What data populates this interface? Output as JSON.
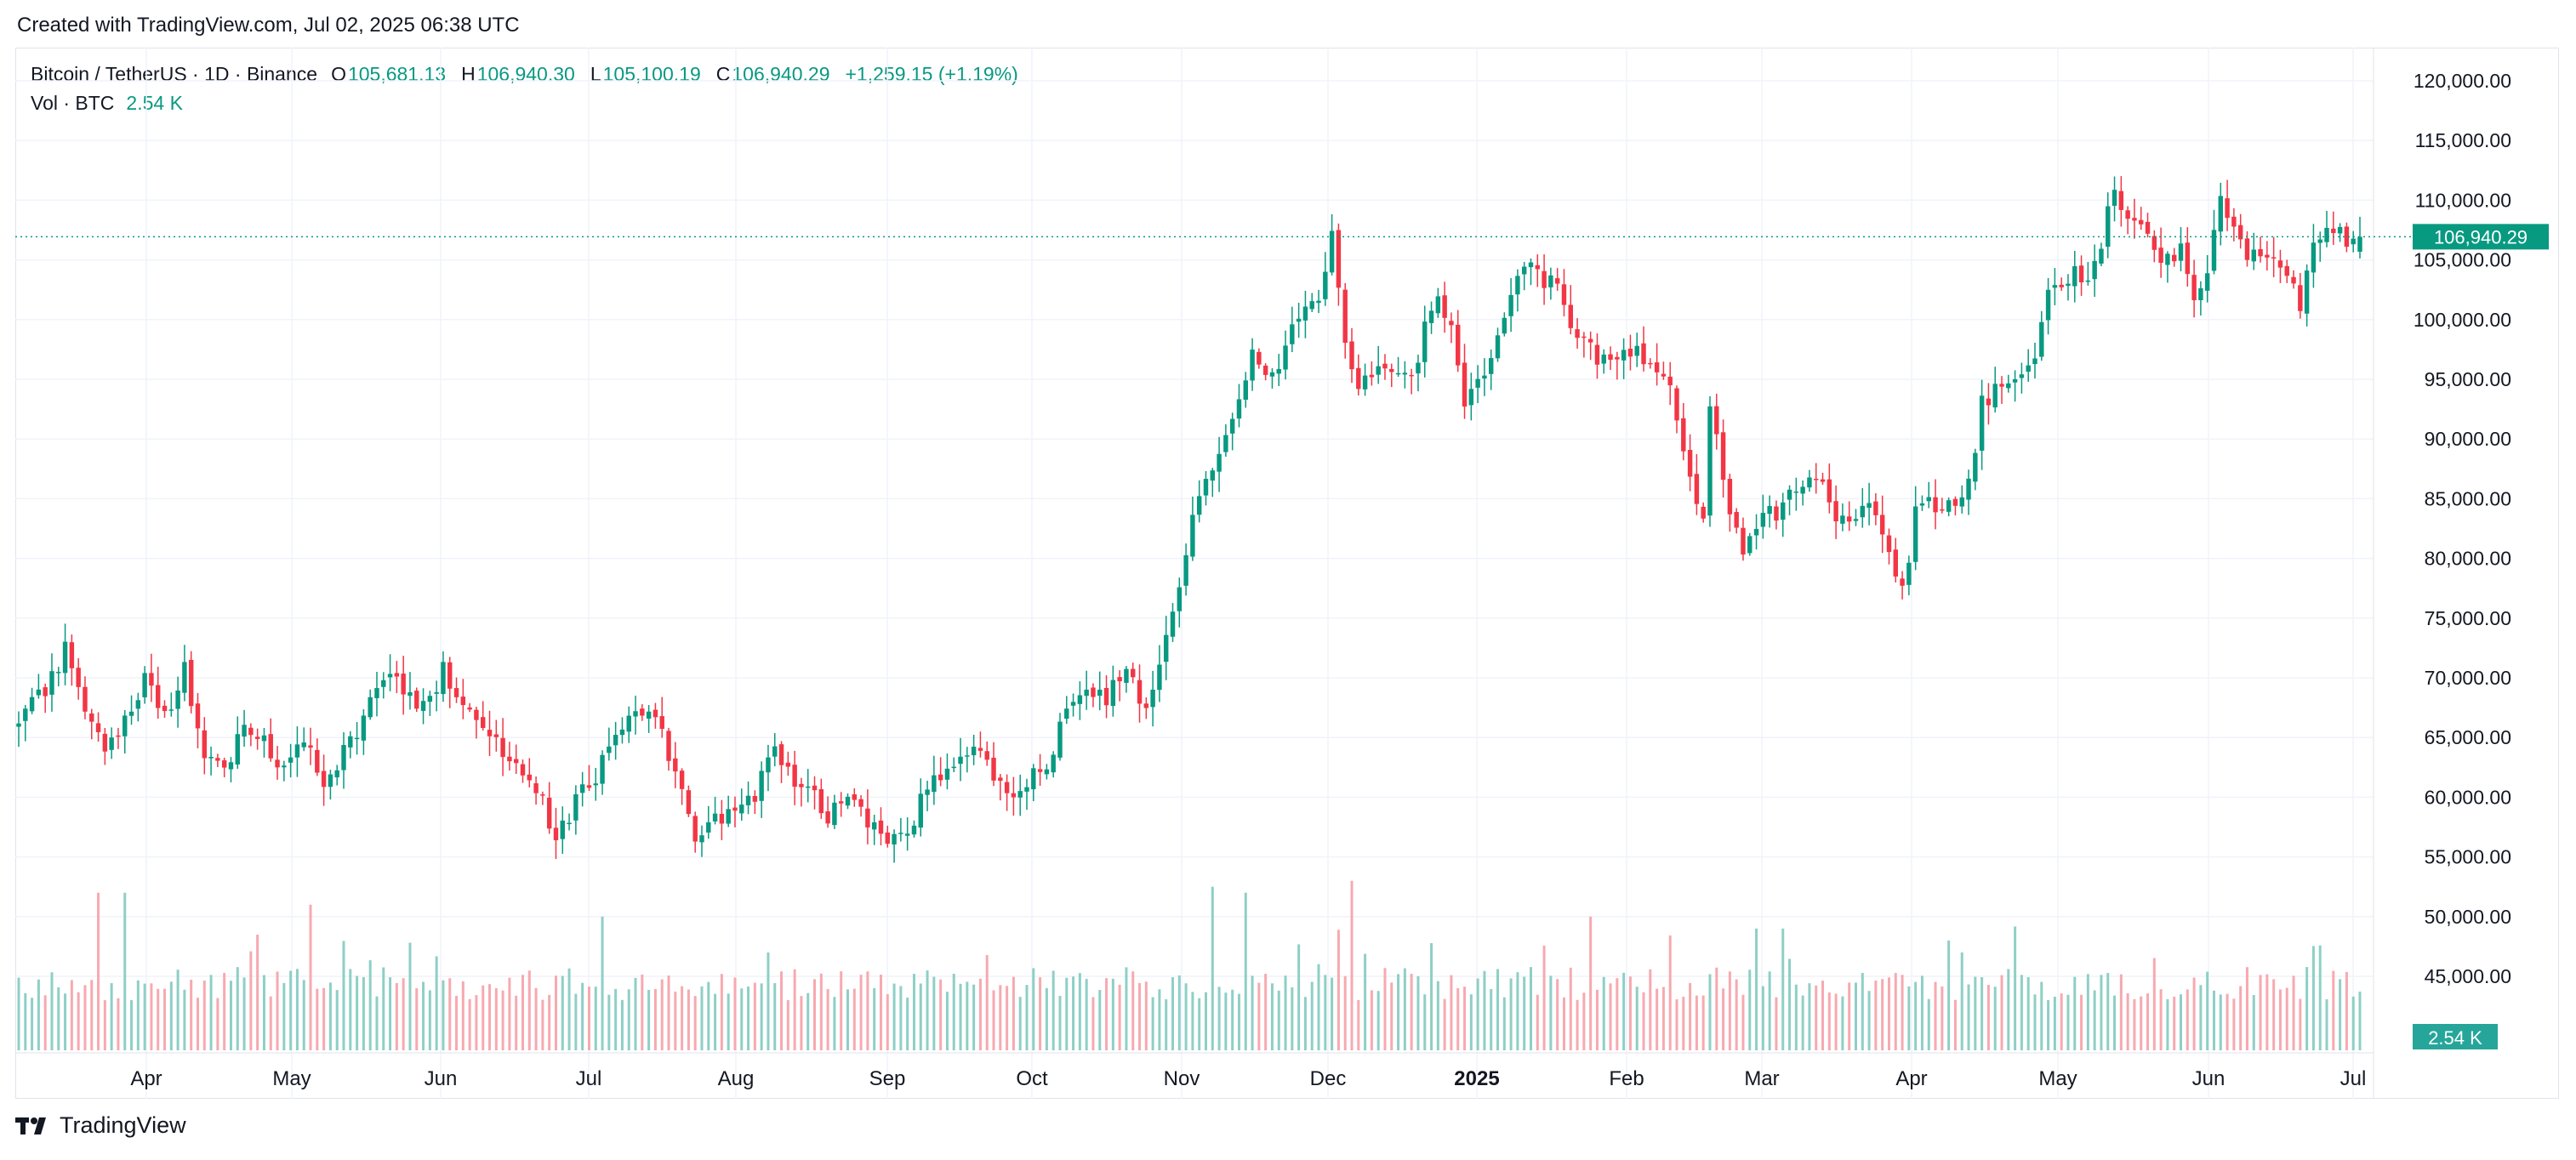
{
  "header": {
    "created_with": "Created with TradingView.com, Jul 02, 2025 06:38 UTC"
  },
  "legend": {
    "symbol": "Bitcoin / TetherUS · 1D · Binance",
    "open_label": "O",
    "open": "105,681.13",
    "high_label": "H",
    "high": "106,940.30",
    "low_label": "L",
    "low": "105,100.19",
    "close_label": "C",
    "close": "106,940.29",
    "change": "+1,259.15 (+1.19%)",
    "vol_label": "Vol · BTC",
    "vol": "2.54 K"
  },
  "price_badge": "106,940.29",
  "volume_badge": "2.54 K",
  "footer": {
    "brand": "TradingView",
    "logo_icon": "tradingview-logo-icon"
  },
  "colors": {
    "up": "#089981",
    "down": "#f23645",
    "up_vol": "#8ecfc6",
    "down_vol": "#f7a9b0",
    "grid": "#f0f3fa",
    "text": "#131722"
  },
  "chart_data": {
    "type": "candlestick",
    "ylim": [
      42000,
      123000
    ],
    "y_ticks": [
      "120,000.00",
      "115,000.00",
      "110,000.00",
      "105,000.00",
      "100,000.00",
      "95,000.00",
      "90,000.00",
      "85,000.00",
      "80,000.00",
      "75,000.00",
      "70,000.00",
      "65,000.00",
      "60,000.00",
      "55,000.00",
      "50,000.00",
      "45,000.00"
    ],
    "x_ticks": [
      "Apr",
      "May",
      "Jun",
      "Jul",
      "Aug",
      "Sep",
      "Oct",
      "Nov",
      "Dec",
      "2025",
      "Feb",
      "Mar",
      "Apr",
      "May",
      "Jun",
      "Jul"
    ],
    "last_close": 106940.29,
    "price_path": [
      [
        0,
        66000
      ],
      [
        4,
        69000
      ],
      [
        7,
        72500
      ],
      [
        10,
        67000
      ],
      [
        13,
        63500
      ],
      [
        16,
        66500
      ],
      [
        19,
        70000
      ],
      [
        22,
        66500
      ],
      [
        25,
        71000
      ],
      [
        28,
        63000
      ],
      [
        31,
        62000
      ],
      [
        34,
        66500
      ],
      [
        37,
        65000
      ],
      [
        40,
        62000
      ],
      [
        43,
        64500
      ],
      [
        46,
        61000
      ],
      [
        49,
        63500
      ],
      [
        52,
        67000
      ],
      [
        55,
        70500
      ],
      [
        58,
        69000
      ],
      [
        61,
        67500
      ],
      [
        64,
        70500
      ],
      [
        67,
        68500
      ],
      [
        70,
        66500
      ],
      [
        73,
        64000
      ],
      [
        76,
        62000
      ],
      [
        78,
        60500
      ],
      [
        81,
        57000
      ],
      [
        84,
        59500
      ],
      [
        87,
        62000
      ],
      [
        90,
        66000
      ],
      [
        93,
        67500
      ],
      [
        96,
        66500
      ],
      [
        99,
        62500
      ],
      [
        102,
        56500
      ],
      [
        105,
        58000
      ],
      [
        108,
        59500
      ],
      [
        111,
        60500
      ],
      [
        114,
        64500
      ],
      [
        117,
        61000
      ],
      [
        120,
        60000
      ],
      [
        122,
        58500
      ],
      [
        125,
        59500
      ],
      [
        128,
        58000
      ],
      [
        131,
        55500
      ],
      [
        134,
        57500
      ],
      [
        137,
        60500
      ],
      [
        140,
        62000
      ],
      [
        143,
        64000
      ],
      [
        146,
        62500
      ],
      [
        149,
        60500
      ],
      [
        152,
        61500
      ],
      [
        155,
        63000
      ],
      [
        158,
        67000
      ],
      [
        161,
        68500
      ],
      [
        164,
        68000
      ],
      [
        166,
        70500
      ],
      [
        168,
        69500
      ],
      [
        170,
        67500
      ],
      [
        172,
        72000
      ],
      [
        174,
        75500
      ],
      [
        176,
        79500
      ],
      [
        178,
        86000
      ],
      [
        180,
        87500
      ],
      [
        182,
        90000
      ],
      [
        184,
        93000
      ],
      [
        186,
        97500
      ],
      [
        188,
        96000
      ],
      [
        190,
        96000
      ],
      [
        192,
        100500
      ],
      [
        194,
        101000
      ],
      [
        196,
        101000
      ],
      [
        198,
        107000
      ],
      [
        200,
        97500
      ],
      [
        202,
        95000
      ],
      [
        204,
        94500
      ],
      [
        206,
        96000
      ],
      [
        208,
        96000
      ],
      [
        210,
        95500
      ],
      [
        212,
        99000
      ],
      [
        214,
        101500
      ],
      [
        216,
        99500
      ],
      [
        218,
        93500
      ],
      [
        221,
        94500
      ],
      [
        224,
        100500
      ],
      [
        226,
        104000
      ],
      [
        228,
        104500
      ],
      [
        230,
        103500
      ],
      [
        232,
        102500
      ],
      [
        234,
        99500
      ],
      [
        236,
        98500
      ],
      [
        238,
        97000
      ],
      [
        240,
        96500
      ],
      [
        242,
        98000
      ],
      [
        244,
        97500
      ],
      [
        246,
        96000
      ],
      [
        248,
        96000
      ],
      [
        250,
        91500
      ],
      [
        252,
        86500
      ],
      [
        254,
        84000
      ],
      [
        255,
        92000
      ],
      [
        256,
        90000
      ],
      [
        258,
        84000
      ],
      [
        260,
        80000
      ],
      [
        262,
        82500
      ],
      [
        264,
        84000
      ],
      [
        266,
        84000
      ],
      [
        268,
        86000
      ],
      [
        270,
        87500
      ],
      [
        272,
        86000
      ],
      [
        274,
        83500
      ],
      [
        276,
        82500
      ],
      [
        278,
        84500
      ],
      [
        280,
        83000
      ],
      [
        282,
        81000
      ],
      [
        284,
        77000
      ],
      [
        286,
        83500
      ],
      [
        288,
        84500
      ],
      [
        290,
        84500
      ],
      [
        292,
        84000
      ],
      [
        294,
        86000
      ],
      [
        296,
        93000
      ],
      [
        298,
        94000
      ],
      [
        300,
        94500
      ],
      [
        302,
        95500
      ],
      [
        304,
        97000
      ],
      [
        306,
        102500
      ],
      [
        308,
        103500
      ],
      [
        310,
        104000
      ],
      [
        312,
        103500
      ],
      [
        314,
        106500
      ],
      [
        316,
        111000
      ],
      [
        318,
        109000
      ],
      [
        320,
        108500
      ],
      [
        322,
        105500
      ],
      [
        324,
        105500
      ],
      [
        326,
        106000
      ],
      [
        328,
        101000
      ],
      [
        330,
        104500
      ],
      [
        332,
        110000
      ],
      [
        334,
        108500
      ],
      [
        336,
        105500
      ],
      [
        338,
        106000
      ],
      [
        340,
        104500
      ],
      [
        342,
        104000
      ],
      [
        344,
        101000
      ],
      [
        346,
        107000
      ],
      [
        348,
        107500
      ],
      [
        350,
        108000
      ],
      [
        352,
        106000
      ],
      [
        353,
        106940
      ]
    ],
    "volume_peaks": [
      [
        12,
        52000
      ],
      [
        16,
        52000
      ],
      [
        44,
        51000
      ],
      [
        88,
        50000
      ],
      [
        113,
        47000
      ],
      [
        180,
        52500
      ],
      [
        185,
        52000
      ],
      [
        201,
        53000
      ],
      [
        237,
        50000
      ],
      [
        262,
        49000
      ],
      [
        266,
        49000
      ],
      [
        291,
        48000
      ],
      [
        293,
        47000
      ]
    ]
  }
}
